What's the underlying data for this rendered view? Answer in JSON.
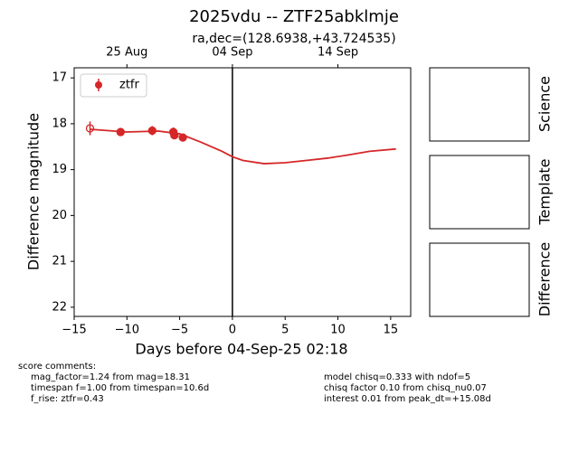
{
  "chart_data": {
    "type": "scatter",
    "title": "2025vdu -- ZTF25abklmje",
    "subtitle": "ra,dec=(128.6938,+43.724535)",
    "xlabel": "Days before 04-Sep-25 02:18",
    "ylabel": "Difference magnitude",
    "xlim": [
      -15,
      16.9
    ],
    "ylim": [
      16.78,
      22.2
    ],
    "y_inverted": true,
    "xticks": [
      {
        "value": -15,
        "label": "−15"
      },
      {
        "value": -10,
        "label": "−10"
      },
      {
        "value": -5,
        "label": "−5"
      },
      0,
      5,
      10,
      15
    ],
    "yticks": [
      17,
      18,
      19,
      20,
      21,
      22
    ],
    "top_xticks": [
      {
        "value": -10,
        "label": "25 Aug"
      },
      {
        "value": 0,
        "label": "04 Sep"
      },
      {
        "value": 10,
        "label": "14 Sep"
      }
    ],
    "vline": 0,
    "legend": "upper left",
    "series": [
      {
        "name": "ztfr",
        "color": "#d62728",
        "x": [
          -13.5,
          -10.6,
          -7.6,
          -5.6,
          -5.5,
          -4.7
        ],
        "values": [
          18.1,
          18.18,
          18.15,
          18.18,
          18.25,
          18.3
        ],
        "errors": [
          0.15,
          0.07,
          0.1,
          0.1,
          0.08,
          0.07
        ],
        "open": [
          true,
          false,
          false,
          false,
          false,
          false
        ]
      }
    ],
    "fit": {
      "color": "#d62728",
      "x": [
        -13.5,
        -10,
        -7,
        -5,
        -3,
        -1,
        0,
        1,
        3,
        5,
        7,
        9,
        11,
        13,
        15.5
      ],
      "values": [
        18.12,
        18.18,
        18.16,
        18.22,
        18.4,
        18.6,
        18.72,
        18.8,
        18.87,
        18.85,
        18.8,
        18.75,
        18.68,
        18.6,
        18.55
      ]
    },
    "panels": [
      "Science",
      "Template",
      "Difference"
    ],
    "comments_left": [
      "score comments:",
      "mag_factor=1.24 from mag=18.31",
      "timespan f=1.00 from timespan=10.6d",
      "f_rise: ztfr=0.43"
    ],
    "comments_right": [
      "model chisq=0.333 with ndof=5",
      "chisq factor 0.10 from chisq_nu0.07",
      "interest 0.01 from peak_dt=+15.08d"
    ]
  }
}
